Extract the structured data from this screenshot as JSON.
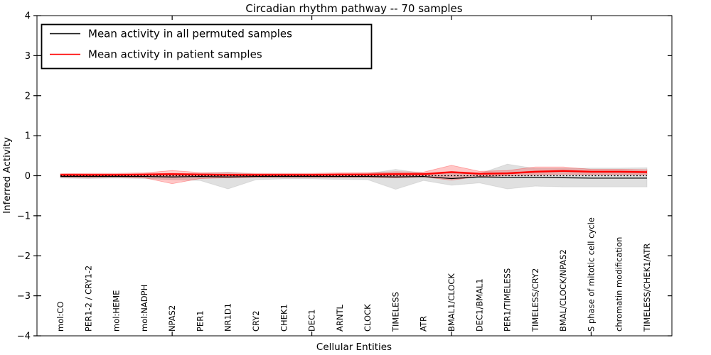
{
  "figure": {
    "background": "#ffffff"
  },
  "chart_data": {
    "type": "line",
    "title": "Circadian rhythm pathway -- 70 samples",
    "xlabel": "Cellular Entities",
    "ylabel": "Inferred Activity",
    "ylim": [
      -4,
      4
    ],
    "grid": false,
    "legend_position": "upper left",
    "ytick_values": [
      4,
      3,
      2,
      1,
      0,
      -1,
      -2,
      -3,
      -4
    ],
    "ytick_labels": [
      "4",
      "3",
      "2",
      "1",
      "0",
      "−1",
      "−2",
      "−3",
      "−4"
    ],
    "categories": [
      "mol:CO",
      "PER1-2 / CRY1-2",
      "mol:HEME",
      "mol:NADPH",
      "NPAS2",
      "PER1",
      "NR1D1",
      "CRY2",
      "CHEK1",
      "DEC1",
      "ARNTL",
      "CLOCK",
      "TIMELESS",
      "ATR",
      "BMAL1/CLOCK",
      "DEC1/BMAL1",
      "PER1/TIMELESS",
      "TIMELESS/CRY2",
      "BMAL/CLOCK/NPAS2",
      "S phase of mitotic cell cycle",
      "chromatin modification",
      "TIMELESS/CHEK1/ATR"
    ],
    "series": [
      {
        "name": "Mean activity in all permuted samples",
        "color": "#000000",
        "band_color": "#000000",
        "band_opacity": 0.12,
        "values": [
          -0.02,
          -0.02,
          -0.02,
          -0.02,
          -0.03,
          -0.02,
          -0.03,
          -0.02,
          -0.02,
          -0.02,
          -0.02,
          -0.02,
          -0.03,
          -0.02,
          -0.07,
          -0.03,
          -0.04,
          -0.04,
          -0.05,
          -0.06,
          -0.06,
          -0.06
        ],
        "band_upper": [
          0.03,
          0.03,
          0.03,
          0.04,
          0.05,
          0.05,
          0.09,
          0.04,
          0.04,
          0.04,
          0.04,
          0.05,
          0.16,
          0.06,
          0.06,
          0.05,
          0.29,
          0.18,
          0.18,
          0.19,
          0.19,
          0.2
        ],
        "band_lower": [
          -0.06,
          -0.07,
          -0.06,
          -0.07,
          -0.1,
          -0.12,
          -0.33,
          -0.1,
          -0.08,
          -0.08,
          -0.09,
          -0.1,
          -0.34,
          -0.12,
          -0.24,
          -0.18,
          -0.33,
          -0.26,
          -0.28,
          -0.28,
          -0.28,
          -0.28
        ]
      },
      {
        "name": "Mean activity in patient samples",
        "color": "#ff0000",
        "band_color": "#ff0000",
        "band_opacity": 0.22,
        "inner_band_opacity": 0.45,
        "values": [
          0.02,
          0.02,
          0.02,
          0.03,
          0.04,
          0.03,
          0.02,
          0.02,
          0.02,
          0.02,
          0.03,
          0.03,
          0.04,
          0.04,
          0.09,
          0.05,
          0.06,
          0.1,
          0.12,
          0.1,
          0.1,
          0.09
        ],
        "band_upper": [
          0.05,
          0.06,
          0.06,
          0.07,
          0.13,
          0.08,
          0.07,
          0.06,
          0.06,
          0.06,
          0.07,
          0.08,
          0.1,
          0.09,
          0.26,
          0.11,
          0.13,
          0.22,
          0.22,
          0.16,
          0.16,
          0.15
        ],
        "band_lower": [
          -0.03,
          -0.04,
          -0.03,
          -0.05,
          -0.2,
          -0.07,
          -0.05,
          -0.04,
          -0.04,
          -0.04,
          -0.04,
          -0.04,
          -0.05,
          -0.03,
          -0.11,
          -0.02,
          0.0,
          0.02,
          0.04,
          0.03,
          0.03,
          0.03
        ]
      }
    ],
    "zero_line": {
      "value": 0,
      "style": "dotted",
      "color": "#000000"
    }
  },
  "legend": {
    "items": [
      {
        "label": "Mean activity in all permuted samples",
        "color": "#000000"
      },
      {
        "label": "Mean activity in patient samples",
        "color": "#ff0000"
      }
    ]
  }
}
